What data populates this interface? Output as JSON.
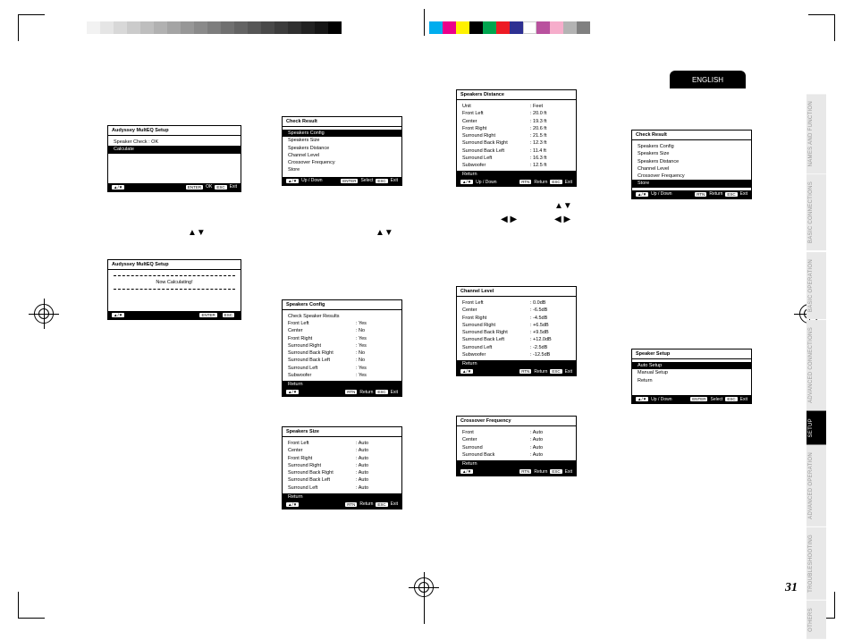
{
  "lang_label": "ENGLISH",
  "page_number": "31",
  "side_tabs": [
    {
      "label": "NAMES AND FUNCTION",
      "active": false
    },
    {
      "label": "BASIC CONNECTIONS",
      "active": false
    },
    {
      "label": "BASIC OPERATION",
      "active": false
    },
    {
      "label": "ADVANCED CONNECTIONS",
      "active": false
    },
    {
      "label": "SETUP",
      "active": true
    },
    {
      "label": "ADVANCED OPERATION",
      "active": false
    },
    {
      "label": "TROUBLESHOOTING",
      "active": false
    },
    {
      "label": "OTHERS",
      "active": false
    }
  ],
  "colorbar": [
    "#00adee",
    "#ec008b",
    "#fff100",
    "#000000",
    "#00a54f",
    "#ed1b24",
    "#2e3092",
    "#ffffff",
    "#b9529e",
    "#f6adcb",
    "#b3b3b3",
    "#808080"
  ],
  "graybar": [
    "#ffffff",
    "#f2f2f2",
    "#e5e5e5",
    "#d8d8d8",
    "#cbcbcb",
    "#bebebe",
    "#b1b1b1",
    "#a4a4a4",
    "#979797",
    "#8a8a8a",
    "#7d7d7d",
    "#707070",
    "#636363",
    "#565656",
    "#494949",
    "#3c3c3c",
    "#2f2f2f",
    "#222222",
    "#151515",
    "#000000"
  ],
  "foot": {
    "updown": "Up / Down",
    "select": "Select",
    "ok": "OK",
    "ret": "Return",
    "exit": "Exit",
    "enter": "ENTER",
    "rtn": "RTN",
    "esc": "ESC",
    "ud": "▲/▼"
  },
  "s1": {
    "title": "Audyssey MultEQ Setup",
    "line1": "Speaker Check : OK",
    "hl": "Calculate"
  },
  "s2": {
    "title": "Audyssey MultEQ Setup",
    "line1": "Now Calculating!"
  },
  "s3": {
    "title": "Check Result",
    "items": [
      "Speakers Config",
      "Speakers Size",
      "Speakers Distance",
      "Channel Level",
      "Crossover Frequency",
      "Store"
    ],
    "hl_idx": 0
  },
  "s4": {
    "title": "Speakers Config",
    "sub": "Check Speaker Results",
    "rows": [
      [
        "Front Left",
        "Yes"
      ],
      [
        "Center",
        "No"
      ],
      [
        "Front Right",
        "Yes"
      ],
      [
        "Surround Right",
        "Yes"
      ],
      [
        "Surround Back Right",
        "No"
      ],
      [
        "Surround Back Left",
        "No"
      ],
      [
        "Surround Left",
        "Yes"
      ],
      [
        "Subwoofer",
        "Yes"
      ]
    ],
    "return": "Return"
  },
  "s5": {
    "title": "Speakers Size",
    "rows": [
      [
        "Front Left",
        "Auto"
      ],
      [
        "Center",
        "Auto"
      ],
      [
        "Front Right",
        "Auto"
      ],
      [
        "Surround Right",
        "Auto"
      ],
      [
        "Surround Back Right",
        "Auto"
      ],
      [
        "Surround Back Left",
        "Auto"
      ],
      [
        "Surround Left",
        "Auto"
      ]
    ],
    "return": "Return"
  },
  "s6": {
    "title": "Speakers Distance",
    "rows": [
      [
        "Unit",
        "Feet"
      ],
      [
        "Front Left",
        "20.0 ft"
      ],
      [
        "Center",
        "19.3 ft"
      ],
      [
        "Front Right",
        "20.6 ft"
      ],
      [
        "Surround Right",
        "21.5 ft"
      ],
      [
        "Surround Back Right",
        "12.3 ft"
      ],
      [
        "Surround Back Left",
        "11.4 ft"
      ],
      [
        "Surround Left",
        "16.3 ft"
      ],
      [
        "Subwoofer",
        "12.5 ft"
      ]
    ],
    "return": "Return"
  },
  "s7": {
    "title": "Channel Level",
    "rows": [
      [
        "Front Left",
        "0.0dB"
      ],
      [
        "Center",
        "-6.5dB"
      ],
      [
        "Front Right",
        "-4.5dB"
      ],
      [
        "Surround Right",
        "+6.5dB"
      ],
      [
        "Surround Back Right",
        "+9.5dB"
      ],
      [
        "Surround Back Left",
        "+12.0dB"
      ],
      [
        "Surround Left",
        "-2.5dB"
      ],
      [
        "Subwoofer",
        "-12.5dB"
      ]
    ],
    "return": "Return"
  },
  "s8": {
    "title": "Crossover Frequency",
    "rows": [
      [
        "Front",
        "Auto"
      ],
      [
        "Center",
        "Auto"
      ],
      [
        "Surround",
        "Auto"
      ],
      [
        "Surround Back",
        "Auto"
      ]
    ],
    "return": "Return"
  },
  "s9": {
    "title": "Check Result",
    "items": [
      "Speakers Config",
      "Speakers Size",
      "Speakers Distance",
      "Channel Level",
      "Crossover Frequency",
      "Store"
    ],
    "hl_idx": 5
  },
  "s10": {
    "title": "Speaker Setup",
    "items": [
      "Auto Setup",
      "Manual Setup",
      "",
      "Return"
    ],
    "hl_idx": 0
  }
}
